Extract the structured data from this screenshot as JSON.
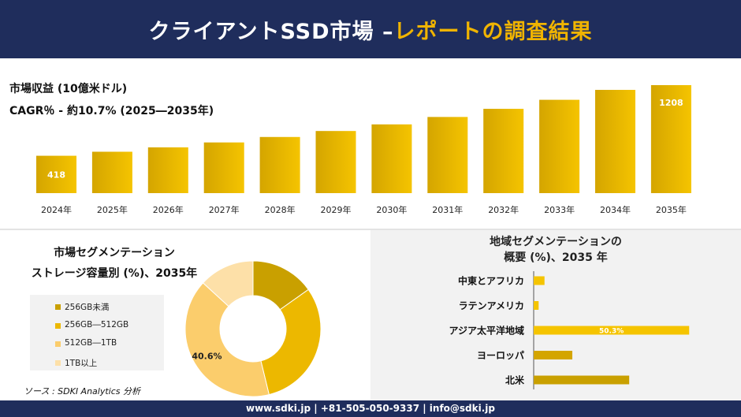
{
  "header": {
    "title_main": "クライアントSSD市場 –",
    "title_accent": "レポートの調査結果"
  },
  "metrics": {
    "revenue_label": "市場収益 (10億米ドル)",
    "cagr_label": "CAGR％ - 約10.7% (2025―2035年)"
  },
  "colors": {
    "navy": "#1f2d5c",
    "gold": "#f0b400",
    "bar_dark": "#d4a500",
    "bar_bright": "#f5c400"
  },
  "chart_data": [
    {
      "type": "bar",
      "categories": [
        "2024年",
        "2025年",
        "2026年",
        "2027年",
        "2028年",
        "2029年",
        "2030年",
        "2031年",
        "2032年",
        "2033年",
        "2034年",
        "2035年"
      ],
      "values": [
        418,
        463,
        512,
        567,
        628,
        695,
        769,
        852,
        943,
        1044,
        1155,
        1208
      ],
      "data_labels": {
        "2024年": "418",
        "2035年": "1208"
      },
      "title": "市場収益 (10億米ドル)",
      "xlabel": "",
      "ylabel": "",
      "ylim": [
        0,
        1208
      ],
      "grid": false
    },
    {
      "type": "pie",
      "title": "市場セグメンテーション ストレージ容量別 (%)、2035年",
      "categories": [
        "256GB未満",
        "256GB―512GB",
        "512GB―1TB",
        "1TB以上"
      ],
      "values": [
        15.2,
        31.0,
        40.6,
        13.2
      ],
      "colors": [
        "#c9a000",
        "#ecb800",
        "#fbcd6c",
        "#fde0a8"
      ],
      "data_labels": {
        "512GB―1TB": "40.6%"
      },
      "legend": "left"
    },
    {
      "type": "bar",
      "orientation": "horizontal",
      "title": "地域セグメンテーションの 概要 (%)、2035 年",
      "categories": [
        "中東とアフリカ",
        "ラテンアメリカ",
        "アジア太平洋地域",
        "ヨーロッパ",
        "北米"
      ],
      "values": [
        3.5,
        1.6,
        50.3,
        12.5,
        30.9
      ],
      "data_labels": {
        "アジア太平洋地域": "50.3%"
      },
      "colors": [
        "#f5c400",
        "#f5c400",
        "#f5c400",
        "#d4a500",
        "#c9a000"
      ],
      "xlim": [
        0,
        51
      ]
    }
  ],
  "segment": {
    "title_line1": "市場セグメンテーション",
    "title_line2": "ストレージ容量別 (%)、2035年",
    "source": "ソース : SDKI Analytics 分析"
  },
  "region": {
    "title_line1": "地域セグメンテーションの",
    "title_line2": "概要 (%)、2035 年"
  },
  "footer": {
    "text": "www.sdki.jp | +81-505-050-9337 | info@sdki.jp"
  }
}
